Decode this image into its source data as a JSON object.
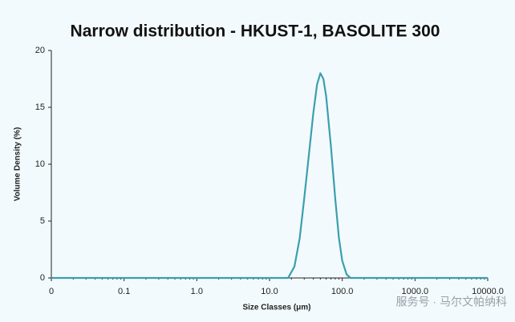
{
  "chart_data": {
    "type": "line",
    "title": "Narrow distribution - HKUST-1, BASOLITE 300",
    "x_label": "Size Classes (μm)",
    "y_label": "Volume Density (%)",
    "x": [
      0.01,
      18,
      22,
      26,
      30,
      35,
      40,
      45,
      50,
      55,
      60,
      70,
      80,
      90,
      100,
      115,
      130,
      10000
    ],
    "values": [
      0,
      0,
      1,
      3.5,
      7,
      11,
      14.5,
      17,
      18,
      17.5,
      16,
      11.5,
      7,
      3.5,
      1.5,
      0.3,
      0,
      0
    ],
    "color": "#3a9fae",
    "xscale": "log",
    "xlim": [
      0.01,
      10000
    ],
    "xticks": [
      {
        "value": 0.01,
        "label": "0"
      },
      0.1,
      {
        "value": 1,
        "label": "1.0"
      },
      {
        "value": 10,
        "label": "10.0"
      },
      {
        "value": 100,
        "label": "100.0"
      },
      {
        "value": 1000,
        "label": "1000.0"
      },
      {
        "value": 10000,
        "label": "10000.0"
      }
    ],
    "ylim": [
      0,
      20
    ],
    "yticks": [
      0,
      5,
      10,
      15,
      20
    ],
    "watermark": "服务号 · 马尔文帕纳科"
  }
}
